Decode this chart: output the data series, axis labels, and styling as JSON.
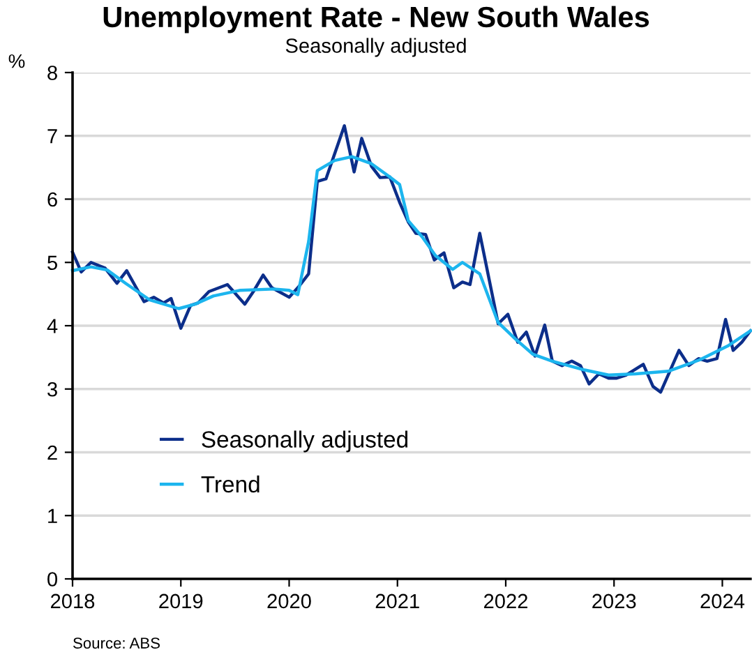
{
  "chart_data": {
    "type": "line",
    "title": "Unemployment Rate - New South Wales",
    "subtitle": "Seasonally adjusted",
    "ylabel": "%",
    "xlim": [
      2018,
      2024.26
    ],
    "xticks": [
      2018,
      2019,
      2020,
      2021,
      2022,
      2023,
      2024
    ],
    "ylim": [
      0,
      8
    ],
    "yticks": [
      0,
      1,
      2,
      3,
      4,
      5,
      6,
      7,
      8
    ],
    "grid": "y",
    "legend": "bottom left",
    "marker": "none",
    "line_style": "solid",
    "annotations": [
      "Source: ABS"
    ],
    "series": [
      {
        "name": "Seasonally adjusted",
        "color": "#0c2e8a",
        "x": [
          2018.0,
          2018.08,
          2018.17,
          2018.3,
          2018.41,
          2018.5,
          2018.66,
          2018.75,
          2018.84,
          2018.91,
          2019.0,
          2019.09,
          2019.16,
          2019.26,
          2019.43,
          2019.59,
          2019.67,
          2019.76,
          2019.84,
          2020.0,
          2020.09,
          2020.18,
          2020.26,
          2020.34,
          2020.51,
          2020.6,
          2020.67,
          2020.76,
          2020.84,
          2020.93,
          2021.02,
          2021.1,
          2021.17,
          2021.26,
          2021.34,
          2021.43,
          2021.52,
          2021.6,
          2021.67,
          2021.76,
          2021.93,
          2022.02,
          2022.11,
          2022.19,
          2022.27,
          2022.36,
          2022.43,
          2022.52,
          2022.61,
          2022.69,
          2022.77,
          2022.86,
          2022.95,
          2023.02,
          2023.11,
          2023.27,
          2023.36,
          2023.43,
          2023.6,
          2023.69,
          2023.78,
          2023.86,
          2023.95,
          2024.03,
          2024.1,
          2024.18,
          2024.26
        ],
        "values": [
          5.16,
          4.85,
          5.0,
          4.91,
          4.67,
          4.87,
          4.38,
          4.45,
          4.36,
          4.43,
          3.96,
          4.32,
          4.36,
          4.54,
          4.65,
          4.34,
          4.54,
          4.8,
          4.6,
          4.45,
          4.62,
          4.82,
          6.28,
          6.32,
          7.16,
          6.43,
          6.96,
          6.52,
          6.34,
          6.35,
          5.95,
          5.64,
          5.46,
          5.44,
          5.04,
          5.15,
          4.6,
          4.69,
          4.65,
          5.46,
          4.03,
          4.18,
          3.74,
          3.9,
          3.52,
          4.01,
          3.44,
          3.37,
          3.44,
          3.37,
          3.08,
          3.24,
          3.17,
          3.17,
          3.22,
          3.39,
          3.04,
          2.95,
          3.61,
          3.37,
          3.48,
          3.44,
          3.48,
          4.1,
          3.61,
          3.74,
          3.92
        ]
      },
      {
        "name": "Trend",
        "color": "#1cb5ee",
        "x": [
          2018.0,
          2018.17,
          2018.32,
          2018.49,
          2018.71,
          2018.98,
          2019.13,
          2019.3,
          2019.55,
          2019.86,
          2020.0,
          2020.08,
          2020.18,
          2020.26,
          2020.42,
          2020.58,
          2020.76,
          2020.93,
          2021.02,
          2021.1,
          2021.23,
          2021.35,
          2021.51,
          2021.6,
          2021.76,
          2021.93,
          2022.09,
          2022.25,
          2022.43,
          2022.73,
          2022.95,
          2023.2,
          2023.5,
          2023.79,
          2024.05,
          2024.26
        ],
        "values": [
          4.87,
          4.93,
          4.88,
          4.67,
          4.41,
          4.27,
          4.34,
          4.47,
          4.56,
          4.58,
          4.56,
          4.49,
          5.33,
          6.45,
          6.61,
          6.67,
          6.56,
          6.35,
          6.23,
          5.66,
          5.4,
          5.11,
          4.89,
          5.0,
          4.82,
          4.05,
          3.79,
          3.55,
          3.44,
          3.3,
          3.22,
          3.24,
          3.28,
          3.46,
          3.68,
          3.92
        ]
      }
    ]
  }
}
